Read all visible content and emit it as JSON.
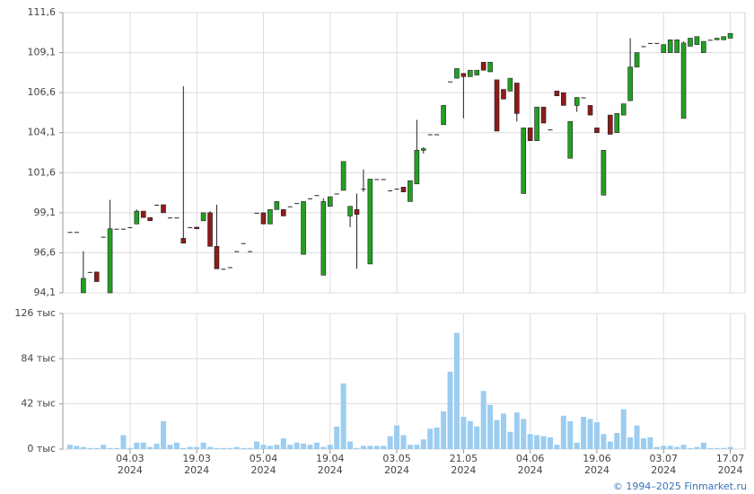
{
  "footer": "© 1994–2025 Finmarket.ru",
  "chart_data": [
    {
      "type": "candlestick",
      "up_color": "#22a022",
      "down_color": "#8e1b1b",
      "flat_color": "#222222",
      "grid": true,
      "ylim": [
        94.1,
        111.6
      ],
      "yticks": [
        {
          "value": 94.1,
          "label": "94,1"
        },
        {
          "value": 96.6,
          "label": "96,6"
        },
        {
          "value": 99.1,
          "label": "99,1"
        },
        {
          "value": 101.6,
          "label": "101,6"
        },
        {
          "value": 104.1,
          "label": "104,1"
        },
        {
          "value": 106.6,
          "label": "106,6"
        },
        {
          "value": 109.1,
          "label": "109,1"
        },
        {
          "value": 111.6,
          "label": "111,6"
        }
      ],
      "open": [
        97.9,
        97.9,
        94.1,
        95.4,
        95.4,
        97.6,
        94.1,
        98.1,
        98.1,
        98.2,
        98.4,
        99.2,
        98.8,
        99.6,
        99.6,
        98.8,
        98.8,
        97.5,
        98.2,
        98.2,
        98.6,
        99.1,
        97.0,
        95.6,
        95.7,
        96.7,
        97.2,
        96.7,
        99.1,
        99.1,
        98.4,
        99.3,
        99.3,
        99.5,
        99.7,
        96.5,
        100.0,
        100.2,
        95.2,
        99.5,
        100.3,
        100.5,
        98.9,
        99.3,
        100.6,
        95.9,
        101.2,
        101.2,
        100.5,
        100.6,
        100.7,
        99.8,
        100.9,
        103.0,
        104.0,
        104.0,
        104.6,
        107.3,
        107.5,
        107.8,
        107.6,
        107.7,
        108.5,
        107.9,
        107.4,
        106.8,
        106.7,
        107.2,
        100.3,
        104.4,
        103.6,
        105.7,
        104.3,
        106.7,
        106.6,
        102.5,
        105.8,
        106.3,
        105.8,
        104.4,
        100.2,
        105.2,
        104.1,
        105.2,
        106.1,
        108.2,
        109.5,
        109.7,
        109.7,
        109.1,
        109.1,
        109.1,
        105.0,
        109.5,
        109.6,
        109.1,
        109.9,
        109.9,
        109.9,
        110.0
      ],
      "high": [
        97.9,
        97.9,
        96.7,
        95.4,
        95.4,
        97.6,
        99.9,
        98.1,
        98.1,
        98.2,
        99.3,
        99.2,
        98.8,
        99.6,
        99.6,
        98.8,
        98.8,
        107.0,
        98.2,
        98.2,
        99.1,
        99.2,
        99.6,
        95.6,
        95.7,
        96.7,
        97.2,
        96.7,
        99.1,
        99.1,
        99.3,
        99.8,
        99.3,
        99.5,
        99.7,
        99.8,
        100.0,
        100.2,
        100.0,
        100.1,
        100.3,
        102.3,
        99.5,
        100.3,
        101.8,
        101.2,
        101.2,
        101.2,
        100.5,
        100.6,
        100.7,
        101.1,
        104.9,
        103.2,
        104.0,
        104.0,
        105.8,
        107.3,
        108.1,
        107.8,
        108.0,
        108.0,
        108.5,
        108.5,
        107.4,
        106.8,
        107.5,
        107.2,
        104.4,
        104.4,
        105.7,
        105.7,
        104.3,
        106.7,
        106.6,
        104.8,
        106.3,
        106.3,
        105.8,
        104.4,
        103.0,
        105.2,
        105.3,
        105.9,
        110.0,
        109.1,
        109.5,
        109.7,
        109.7,
        109.6,
        109.9,
        109.9,
        109.8,
        110.0,
        110.1,
        109.8,
        109.9,
        110.0,
        110.1,
        110.3
      ],
      "low": [
        97.9,
        97.9,
        94.1,
        95.4,
        94.8,
        97.6,
        94.1,
        98.1,
        98.1,
        98.2,
        98.4,
        98.8,
        98.6,
        99.6,
        99.1,
        98.8,
        98.8,
        97.2,
        98.2,
        98.1,
        98.6,
        97.0,
        95.6,
        95.6,
        95.7,
        96.7,
        97.2,
        96.7,
        99.1,
        98.4,
        98.4,
        99.3,
        98.9,
        99.5,
        99.7,
        96.5,
        100.0,
        100.2,
        95.2,
        99.5,
        100.3,
        100.5,
        98.2,
        95.6,
        100.4,
        95.9,
        101.2,
        101.2,
        100.5,
        100.6,
        100.4,
        99.8,
        100.9,
        102.8,
        104.0,
        104.0,
        104.6,
        107.3,
        107.5,
        105.0,
        107.6,
        107.7,
        108.0,
        107.9,
        104.2,
        106.2,
        106.7,
        104.8,
        100.3,
        103.6,
        103.6,
        104.7,
        104.3,
        106.4,
        105.8,
        102.5,
        105.4,
        106.3,
        105.2,
        104.1,
        100.2,
        104.0,
        104.1,
        105.2,
        106.1,
        108.2,
        109.5,
        109.7,
        109.7,
        109.1,
        109.1,
        109.1,
        105.0,
        109.5,
        109.6,
        109.1,
        109.9,
        109.9,
        109.9,
        110.0
      ],
      "close": [
        97.9,
        97.9,
        95.0,
        95.4,
        94.8,
        97.6,
        98.1,
        98.1,
        98.1,
        98.2,
        99.2,
        98.8,
        98.6,
        99.6,
        99.1,
        98.8,
        98.8,
        97.2,
        98.2,
        98.1,
        99.1,
        97.0,
        95.6,
        95.6,
        95.7,
        96.7,
        97.2,
        96.7,
        99.1,
        98.4,
        99.3,
        99.8,
        98.9,
        99.5,
        99.7,
        99.8,
        100.0,
        100.2,
        99.8,
        100.1,
        100.3,
        102.3,
        99.5,
        99.0,
        100.6,
        101.2,
        101.2,
        101.2,
        100.5,
        100.6,
        100.4,
        101.1,
        103.0,
        103.1,
        104.0,
        104.0,
        105.8,
        107.3,
        108.1,
        107.6,
        108.0,
        108.0,
        108.0,
        108.5,
        104.2,
        106.2,
        107.5,
        105.3,
        104.4,
        103.6,
        105.7,
        104.7,
        104.3,
        106.4,
        105.8,
        104.8,
        106.3,
        106.3,
        105.2,
        104.1,
        103.0,
        104.0,
        105.3,
        105.9,
        108.2,
        109.1,
        109.5,
        109.7,
        109.7,
        109.6,
        109.9,
        109.9,
        109.7,
        110.0,
        110.1,
        109.8,
        109.9,
        110.0,
        110.1,
        110.3
      ]
    },
    {
      "type": "bar",
      "color": "#9ccdf0",
      "grid": true,
      "ylim": [
        0,
        126000
      ],
      "yticks": [
        {
          "value": 0,
          "label": "0 тыс"
        },
        {
          "value": 42000,
          "label": "42 тыс"
        },
        {
          "value": 84000,
          "label": "84 тыс"
        },
        {
          "value": 126000,
          "label": "126 тыс"
        }
      ],
      "categories": [
        null,
        null,
        null,
        null,
        null,
        null,
        null,
        null,
        null,
        "04.03\n2024",
        null,
        null,
        null,
        null,
        null,
        null,
        null,
        null,
        null,
        "19.03\n2024",
        null,
        null,
        null,
        null,
        null,
        null,
        null,
        null,
        null,
        "05.04\n2024",
        null,
        null,
        null,
        null,
        null,
        null,
        null,
        null,
        null,
        "19.04\n2024",
        null,
        null,
        null,
        null,
        null,
        null,
        null,
        null,
        null,
        "03.05\n2024",
        null,
        null,
        null,
        null,
        null,
        null,
        null,
        null,
        null,
        "21.05\n2024",
        null,
        null,
        null,
        null,
        null,
        null,
        null,
        null,
        null,
        "04.06\n2024",
        null,
        null,
        null,
        null,
        null,
        null,
        null,
        null,
        null,
        "19.06\n2024",
        null,
        null,
        null,
        null,
        null,
        null,
        null,
        null,
        null,
        "03.07\n2024",
        null,
        null,
        null,
        null,
        null,
        null,
        null,
        null,
        null,
        "17.07\n2024"
      ],
      "values": [
        4000,
        3000,
        2000,
        1000,
        1000,
        4000,
        1000,
        1000,
        13000,
        1000,
        6000,
        6000,
        2000,
        5000,
        26000,
        4000,
        6000,
        1000,
        2000,
        2000,
        6000,
        2000,
        1000,
        1000,
        1000,
        2000,
        1000,
        1000,
        7000,
        4000,
        3000,
        4000,
        10000,
        4000,
        6000,
        5000,
        4000,
        6000,
        2000,
        4000,
        21000,
        61000,
        7000,
        1000,
        3000,
        3000,
        3000,
        3000,
        12000,
        22000,
        13000,
        4000,
        4000,
        9000,
        19000,
        20000,
        35000,
        72000,
        108000,
        30000,
        26000,
        21000,
        54000,
        41000,
        27000,
        33000,
        16000,
        34000,
        28000,
        14000,
        13000,
        12000,
        11000,
        4000,
        31000,
        26000,
        6000,
        30000,
        28000,
        25000,
        14000,
        7000,
        15000,
        37000,
        11000,
        22000,
        10000,
        11000,
        2000,
        3000,
        3000,
        2000,
        4000,
        1000,
        2000,
        6000,
        1000,
        1000,
        1000,
        2000
      ]
    }
  ]
}
